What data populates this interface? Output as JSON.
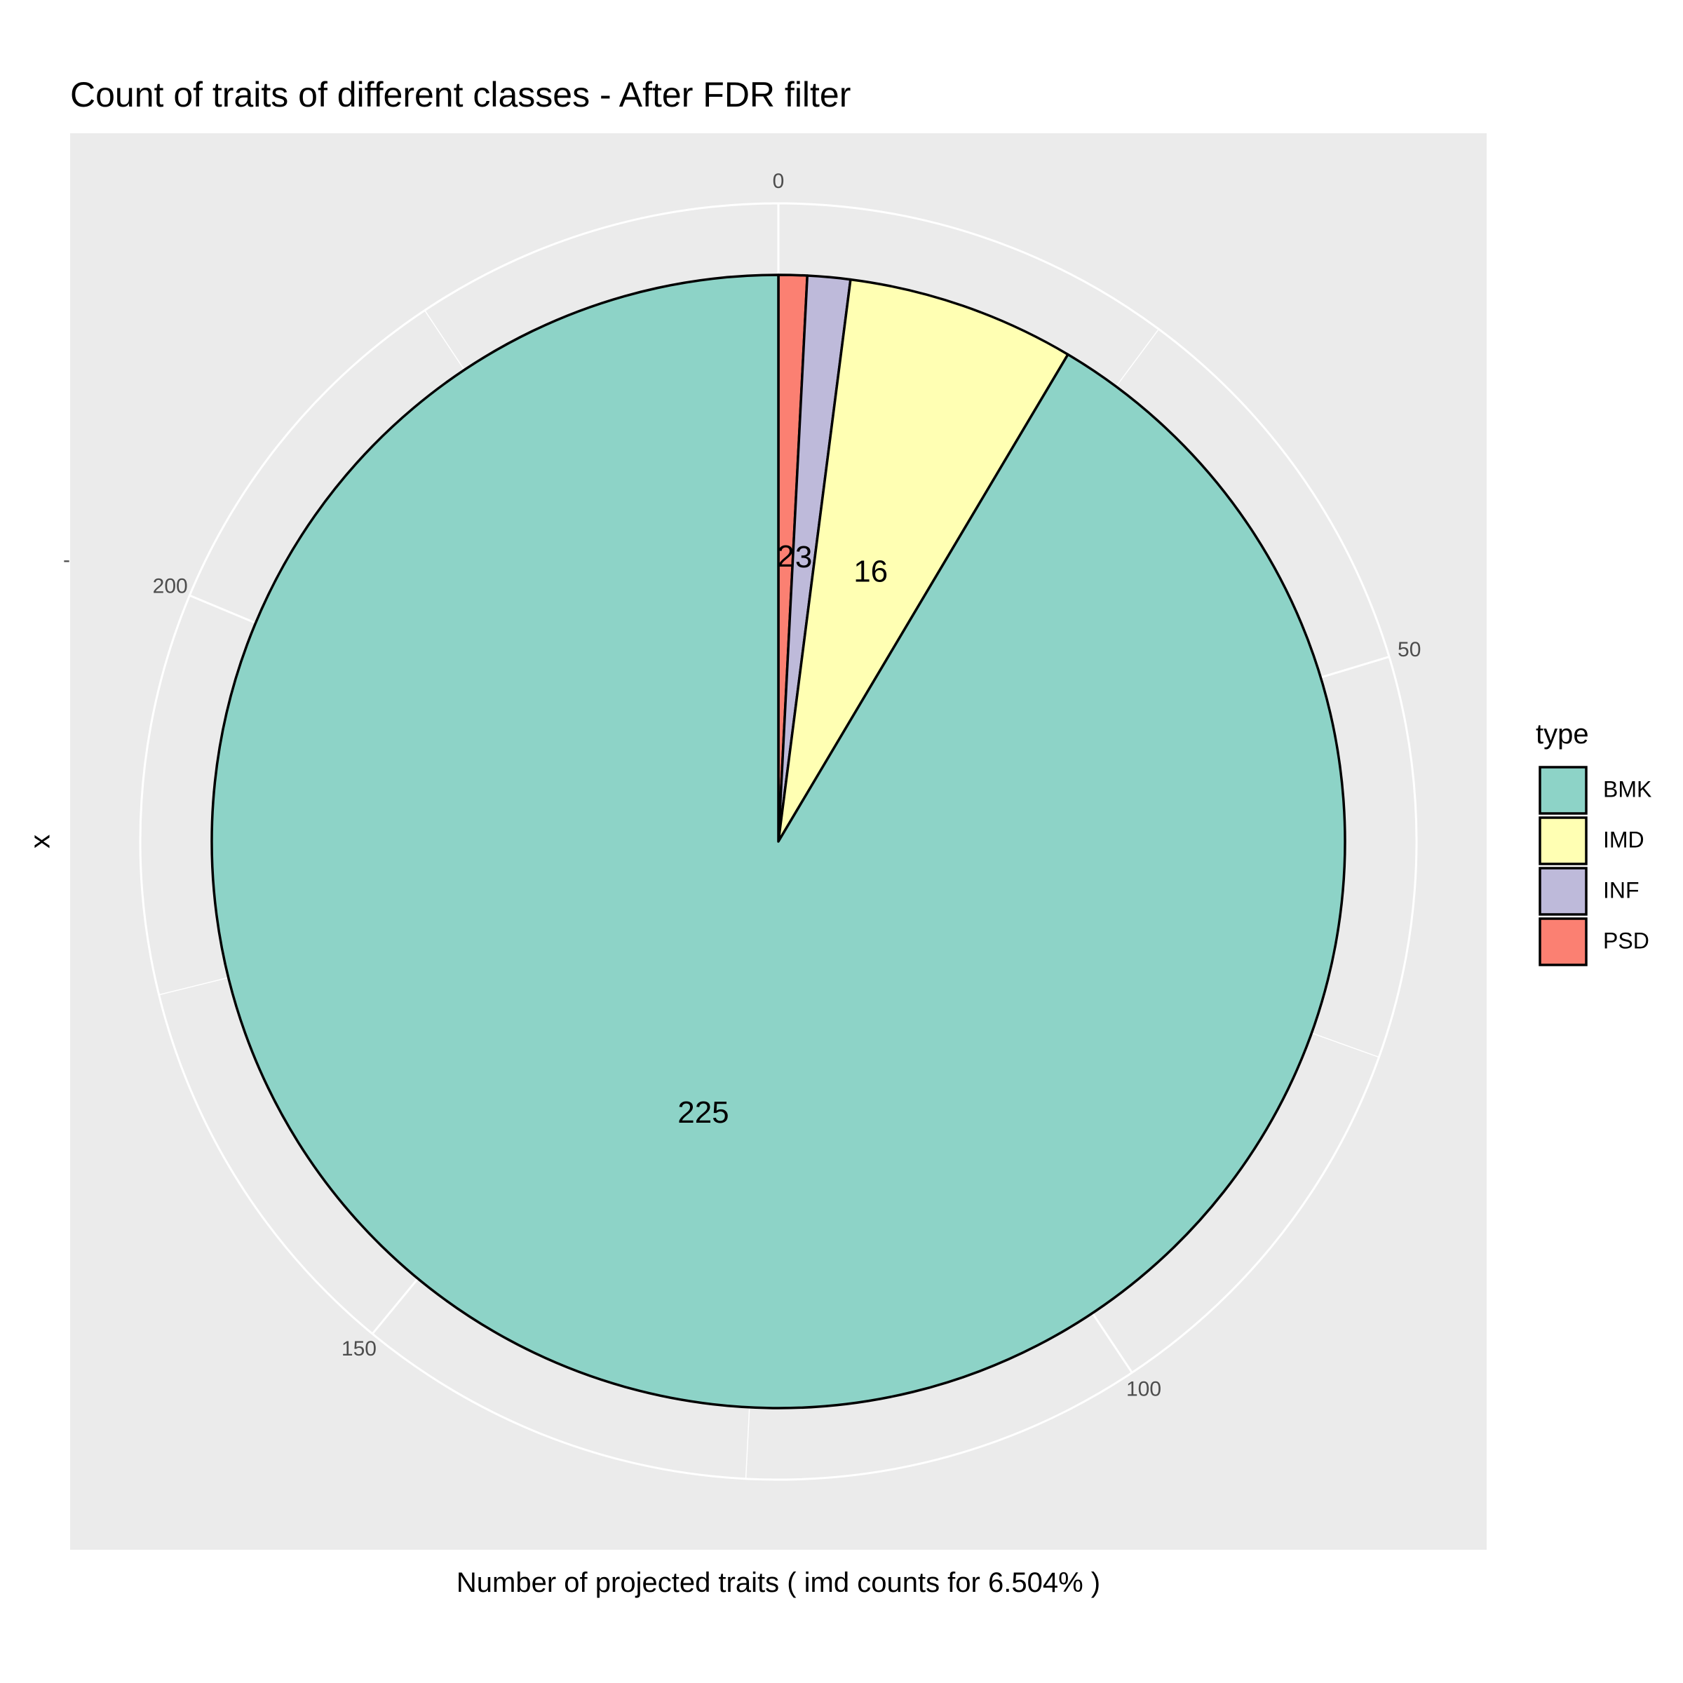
{
  "chart_data": {
    "type": "pie",
    "title": "Count of traits of different classes - After FDR filter",
    "xlabel": "Number of projected traits ( imd counts for 6.504% )",
    "ylabel": "x",
    "y_tick_label": "-",
    "angular_ticks": [
      0,
      50,
      100,
      150,
      200
    ],
    "categories": [
      "PSD",
      "INF",
      "IMD",
      "BMK"
    ],
    "values": [
      2,
      3,
      16,
      225
    ],
    "slice_labels": [
      "2",
      "3",
      "16",
      "225"
    ],
    "colors": [
      "#fb8072",
      "#bebada",
      "#ffffb3",
      "#8dd3c7"
    ],
    "legend": {
      "title": "type",
      "position": "right",
      "entries": [
        {
          "label": "BMK",
          "color": "#8dd3c7"
        },
        {
          "label": "IMD",
          "color": "#ffffb3"
        },
        {
          "label": "INF",
          "color": "#bebada"
        },
        {
          "label": "PSD",
          "color": "#fb8072"
        }
      ]
    },
    "panel_background": "#ebebeb",
    "grid": true
  }
}
